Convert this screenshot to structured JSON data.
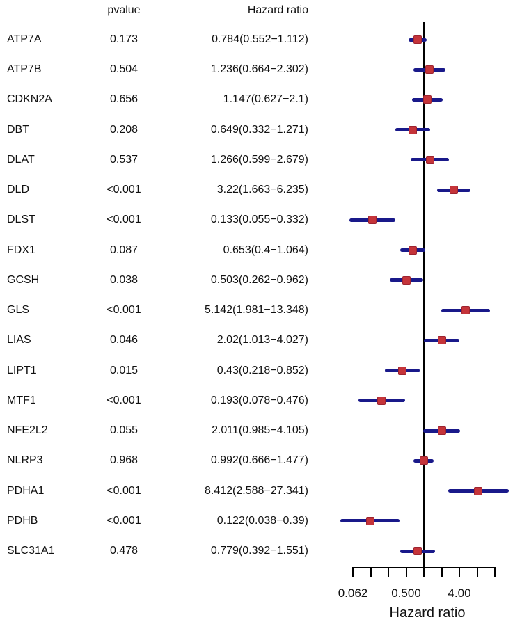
{
  "header": {
    "pvalue": "pvalue",
    "hazard_ratio": "Hazard ratio"
  },
  "chart_data": {
    "type": "forest",
    "xlabel": "Hazard ratio",
    "x_scale": "log2",
    "x_range": [
      0.0625,
      16
    ],
    "ref_line": 1,
    "x_ticks": [
      0.0625,
      0.125,
      0.25,
      0.5,
      1,
      2,
      4,
      8,
      16
    ],
    "x_tick_labels": [
      {
        "text": "0.062",
        "value": 0.0625
      },
      {
        "text": "0.500",
        "value": 0.5
      },
      {
        "text": "4.00",
        "value": 4
      }
    ],
    "ci_color": "#19198A",
    "box_color": "#C5343A",
    "box_border_color": "#9E2430",
    "ref_line_color": "#000000",
    "rows": [
      {
        "gene": "ATP7A",
        "pvalue": "0.173",
        "hr_text": "0.784(0.552−1.112)",
        "hr": 0.784,
        "lo": 0.552,
        "hi": 1.112
      },
      {
        "gene": "ATP7B",
        "pvalue": "0.504",
        "hr_text": "1.236(0.664−2.302)",
        "hr": 1.236,
        "lo": 0.664,
        "hi": 2.302
      },
      {
        "gene": "CDKN2A",
        "pvalue": "0.656",
        "hr_text": "1.147(0.627−2.1)",
        "hr": 1.147,
        "lo": 0.627,
        "hi": 2.1
      },
      {
        "gene": "DBT",
        "pvalue": "0.208",
        "hr_text": "0.649(0.332−1.271)",
        "hr": 0.649,
        "lo": 0.332,
        "hi": 1.271
      },
      {
        "gene": "DLAT",
        "pvalue": "0.537",
        "hr_text": "1.266(0.599−2.679)",
        "hr": 1.266,
        "lo": 0.599,
        "hi": 2.679
      },
      {
        "gene": "DLD",
        "pvalue": "<0.001",
        "hr_text": "3.22(1.663−6.235)",
        "hr": 3.22,
        "lo": 1.663,
        "hi": 6.235
      },
      {
        "gene": "DLST",
        "pvalue": "<0.001",
        "hr_text": "0.133(0.055−0.332)",
        "hr": 0.133,
        "lo": 0.055,
        "hi": 0.332
      },
      {
        "gene": "FDX1",
        "pvalue": "0.087",
        "hr_text": "0.653(0.4−1.064)",
        "hr": 0.653,
        "lo": 0.4,
        "hi": 1.064
      },
      {
        "gene": "GCSH",
        "pvalue": "0.038",
        "hr_text": "0.503(0.262−0.962)",
        "hr": 0.503,
        "lo": 0.262,
        "hi": 0.962
      },
      {
        "gene": "GLS",
        "pvalue": "<0.001",
        "hr_text": "5.142(1.981−13.348)",
        "hr": 5.142,
        "lo": 1.981,
        "hi": 13.348
      },
      {
        "gene": "LIAS",
        "pvalue": "0.046",
        "hr_text": "2.02(1.013−4.027)",
        "hr": 2.02,
        "lo": 1.013,
        "hi": 4.027
      },
      {
        "gene": "LIPT1",
        "pvalue": "0.015",
        "hr_text": "0.43(0.218−0.852)",
        "hr": 0.43,
        "lo": 0.218,
        "hi": 0.852
      },
      {
        "gene": "MTF1",
        "pvalue": "<0.001",
        "hr_text": "0.193(0.078−0.476)",
        "hr": 0.193,
        "lo": 0.078,
        "hi": 0.476
      },
      {
        "gene": "NFE2L2",
        "pvalue": "0.055",
        "hr_text": "2.011(0.985−4.105)",
        "hr": 2.011,
        "lo": 0.985,
        "hi": 4.105
      },
      {
        "gene": "NLRP3",
        "pvalue": "0.968",
        "hr_text": "0.992(0.666−1.477)",
        "hr": 0.992,
        "lo": 0.666,
        "hi": 1.477
      },
      {
        "gene": "PDHA1",
        "pvalue": "<0.001",
        "hr_text": "8.412(2.588−27.341)",
        "hr": 8.412,
        "lo": 2.588,
        "hi": 27.341
      },
      {
        "gene": "PDHB",
        "pvalue": "<0.001",
        "hr_text": "0.122(0.038−0.39)",
        "hr": 0.122,
        "lo": 0.038,
        "hi": 0.39
      },
      {
        "gene": "SLC31A1",
        "pvalue": "0.478",
        "hr_text": "0.779(0.392−1.551)",
        "hr": 0.779,
        "lo": 0.392,
        "hi": 1.551
      }
    ]
  }
}
